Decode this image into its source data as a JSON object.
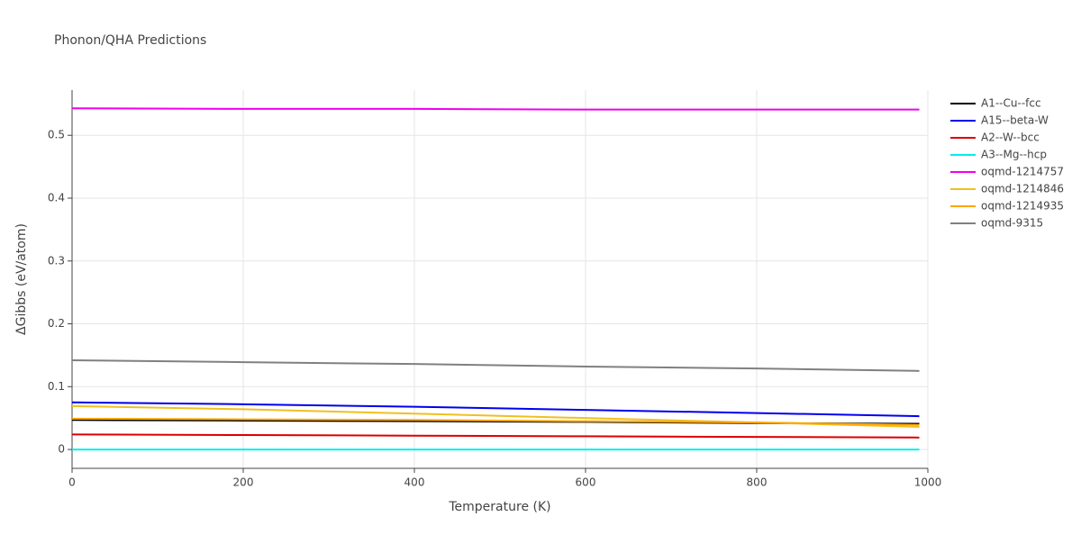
{
  "chart_data": {
    "type": "line",
    "title": "Phonon/QHA Predictions",
    "x_label": "Temperature (K)",
    "y_label": "ΔGibbs (eV/atom)",
    "x": [
      0,
      200,
      400,
      600,
      800,
      990
    ],
    "series": [
      {
        "name": "A1--Cu--fcc",
        "color": "#000000",
        "values": [
          0.047,
          0.046,
          0.045,
          0.044,
          0.042,
          0.041
        ]
      },
      {
        "name": "A15--beta-W",
        "color": "#0000ee",
        "values": [
          0.075,
          0.072,
          0.068,
          0.063,
          0.058,
          0.053
        ]
      },
      {
        "name": "A2--W--bcc",
        "color": "#dd0000",
        "values": [
          0.024,
          0.023,
          0.022,
          0.021,
          0.02,
          0.019
        ]
      },
      {
        "name": "A3--Mg--hcp",
        "color": "#00eeee",
        "values": [
          0,
          0,
          0,
          0,
          0,
          0
        ]
      },
      {
        "name": "oqmd-1214757",
        "color": "#ee00ee",
        "values": [
          0.543,
          0.542,
          0.542,
          0.541,
          0.541,
          0.541
        ]
      },
      {
        "name": "oqmd-1214846",
        "color": "#f0c020",
        "values": [
          0.069,
          0.064,
          0.057,
          0.05,
          0.043,
          0.036
        ]
      },
      {
        "name": "oqmd-1214935",
        "color": "#ffa500",
        "values": [
          0.049,
          0.048,
          0.047,
          0.045,
          0.043,
          0.039
        ]
      },
      {
        "name": "oqmd-9315",
        "color": "#808080",
        "values": [
          0.142,
          0.139,
          0.136,
          0.132,
          0.129,
          0.125
        ]
      }
    ],
    "xlim": [
      0,
      1000
    ],
    "xticks": [
      0,
      200,
      400,
      600,
      800,
      1000
    ],
    "ylim": [
      -0.03,
      0.572
    ],
    "yticks": [
      0,
      0.1,
      0.2,
      0.3,
      0.4,
      0.5
    ],
    "grid": true,
    "legend": "right"
  }
}
